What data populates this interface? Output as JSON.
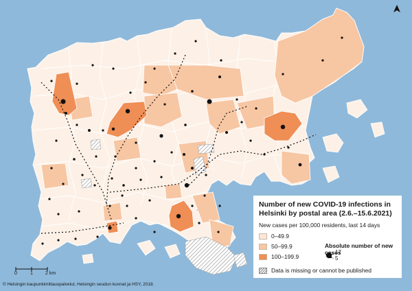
{
  "legend": {
    "title": "Number of new COVID-19 infections in Helsinki by postal area (2.6.–15.6.2021)",
    "subtitle": "New cases per 100,000 residents, last 14 days",
    "classes": [
      {
        "label": "0–49.9",
        "color": "#fbe8d8"
      },
      {
        "label": "50–99.9",
        "color": "#f7c6a3"
      },
      {
        "label": "100–199.9",
        "color": "#ef8e55"
      }
    ],
    "absolute_title": "Absolute number of new cases",
    "absolute_max": "17",
    "absolute_min": "5",
    "missing_label": "Data is missing or cannot be published"
  },
  "scale": {
    "labels": [
      "0",
      "1",
      "2 km"
    ]
  },
  "copyright": "© Helsingin kaupunkimittauspalvelut, Helsingin seudun kunnat ja HSY, 2018.",
  "colors": {
    "sea": "#8fb9da",
    "land_base": "#fdf1e7",
    "border": "#ffffff"
  },
  "north_arrow_icon": "north-arrow-icon"
}
